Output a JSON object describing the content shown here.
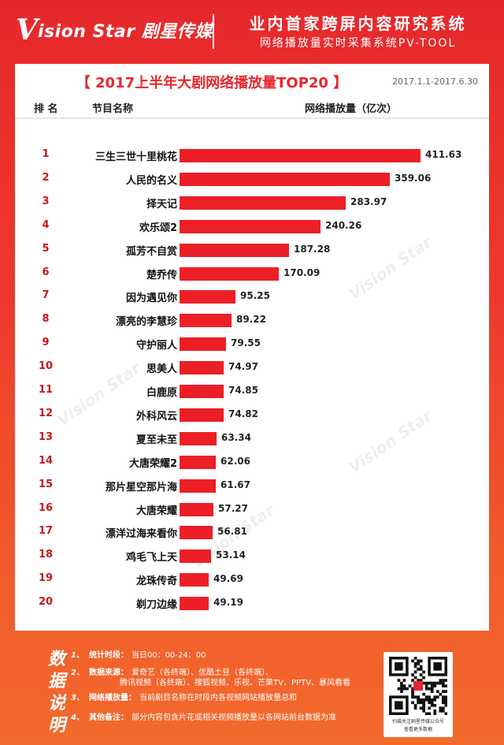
{
  "header": {
    "logo_initial": "V",
    "logo_rest": "ision Star 剧星传媒",
    "line1": "业内首家跨屏内容研究系统",
    "line2": "网络播放量实时采集系统PV-TOOL"
  },
  "panel": {
    "date_range": "2017.1.1-2017.6.30",
    "col_rank": "排 名",
    "col_name": "节目名称",
    "col_plays": "网络播放量（亿次）"
  },
  "chart_data": {
    "type": "bar",
    "orientation": "horizontal",
    "title": "【 2017上半年大剧网络播放量TOP20 】",
    "xlabel": "网络播放量（亿次）",
    "ylabel": "节目名称",
    "bar_color": "#ec1f26",
    "ranks": [
      "1",
      "2",
      "3",
      "4",
      "5",
      "6",
      "7",
      "8",
      "9",
      "10",
      "11",
      "12",
      "13",
      "14",
      "15",
      "16",
      "17",
      "18",
      "19",
      "20"
    ],
    "categories": [
      "三生三世十里桃花",
      "人民的名义",
      "择天记",
      "欢乐颂2",
      "孤芳不自赏",
      "楚乔传",
      "因为遇见你",
      "漂亮的李慧珍",
      "守护丽人",
      "思美人",
      "白鹿原",
      "外科风云",
      "夏至未至",
      "大唐荣耀2",
      "那片星空那片海",
      "大唐荣耀",
      "漂洋过海来看你",
      "鸡毛飞上天",
      "龙珠传奇",
      "剃刀边缘"
    ],
    "values": [
      411.63,
      359.06,
      283.97,
      240.26,
      187.28,
      170.09,
      95.25,
      89.22,
      79.55,
      74.97,
      74.85,
      74.82,
      63.34,
      62.06,
      61.67,
      57.27,
      56.81,
      53.14,
      49.69,
      49.19
    ],
    "value_labels": [
      "411.63",
      "359.06",
      "283.97",
      "240.26",
      "187.28",
      "170.09",
      "95.25",
      "89.22",
      "79.55",
      "74.97",
      "74.85",
      "74.82",
      "63.34",
      "62.06",
      "61.67",
      "57.27",
      "56.81",
      "53.14",
      "49.69",
      "49.19"
    ],
    "xlim": [
      0,
      411.63
    ]
  },
  "footer": {
    "label_chars": [
      "数",
      "据",
      "说",
      "明"
    ],
    "notes": [
      {
        "num": "1、",
        "key": "统计时段：",
        "text": "当日00：00-24：00"
      },
      {
        "num": "2、",
        "key": "数据来源：",
        "text": "爱奇艺（各终端）、优酷土豆（各终端）、"
      },
      {
        "num": "",
        "key": "",
        "text": "腾讯视频（各终端）、搜狐视频、乐视、芒果TV、PPTV、暴风看看"
      },
      {
        "num": "3、",
        "key": "网络播放量：",
        "text": "当前剧目名称在时段内各视频网站播放量总和"
      },
      {
        "num": "4、",
        "key": "其他备注：",
        "text": "部分内容包含片花或相关视频播放量以各网站前台数据为准"
      }
    ],
    "qr_caption1": "扫描关注剧星传媒公众号",
    "qr_caption2": "查看更多数据"
  },
  "colors": {
    "background_top": "#e6282c",
    "background_bottom": "#f26a2c",
    "rank_text": "#c7171c",
    "title_text": "#e8272d"
  }
}
